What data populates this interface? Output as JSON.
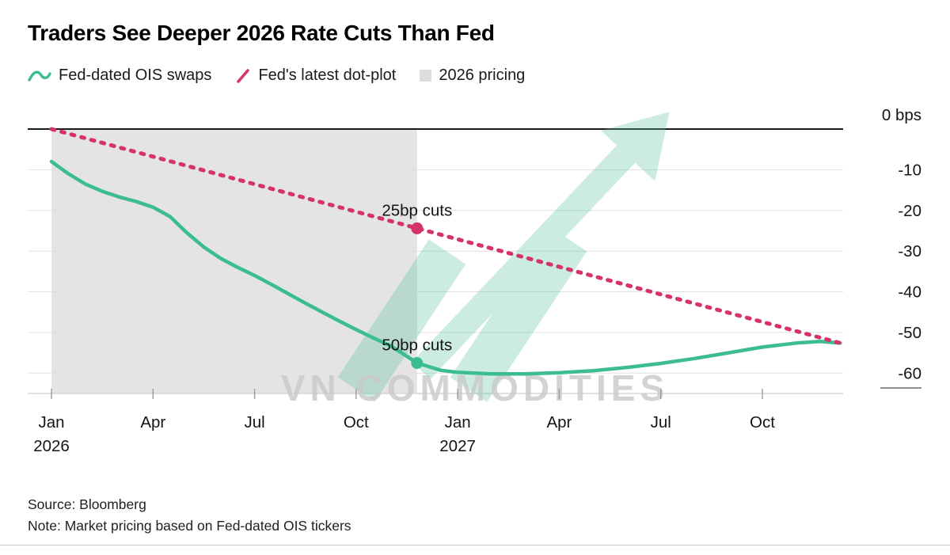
{
  "footer": {
    "source": "Source: Bloomberg",
    "note": "Note: Market pricing based on Fed-dated OIS tickers"
  },
  "watermark": {
    "text": "VN COMMODITIES",
    "icon": "trending-up-arrow-icon",
    "color": "#58c39e",
    "text_color": "#c9c9c9"
  },
  "colors": {
    "ois_green": "#3bbd90",
    "dot_plot_pink": "#d6326b",
    "region_gray": "#e4e4e4",
    "gridline": "#e0e0e0",
    "zero_line": "#1a1a1a"
  },
  "chart_data": {
    "type": "line",
    "title": "Traders See Deeper 2026 Rate Cuts Than Fed",
    "xlabel": "",
    "ylabel": "bps",
    "ylim": [
      -65,
      0
    ],
    "xlim": [
      0,
      23.3
    ],
    "x_unit": "months since Jan 2026",
    "grid": true,
    "legend_position": "top",
    "y_ticks": [
      {
        "value": 0,
        "label": "0 bps"
      },
      {
        "value": -10,
        "label": "-10"
      },
      {
        "value": -20,
        "label": "-20"
      },
      {
        "value": -30,
        "label": "-30"
      },
      {
        "value": -40,
        "label": "-40"
      },
      {
        "value": -50,
        "label": "-50"
      },
      {
        "value": -60,
        "label": "-60"
      }
    ],
    "x_ticks": [
      {
        "month": 0,
        "label": "Jan",
        "sublabel": "2026"
      },
      {
        "month": 3,
        "label": "Apr"
      },
      {
        "month": 6,
        "label": "Jul"
      },
      {
        "month": 9,
        "label": "Oct"
      },
      {
        "month": 12,
        "label": "Jan",
        "sublabel": "2027"
      },
      {
        "month": 15,
        "label": "Apr"
      },
      {
        "month": 18,
        "label": "Jul"
      },
      {
        "month": 21,
        "label": "Oct"
      }
    ],
    "series": [
      {
        "name": "Fed-dated OIS swaps",
        "data_name": "ois-swaps-line",
        "color": "#3bbd90",
        "style": "solid",
        "stroke_width": 4.5,
        "x": [
          0,
          0.5,
          1,
          1.5,
          2,
          2.5,
          3,
          3.5,
          4,
          4.5,
          5,
          5.5,
          6,
          6.5,
          7,
          7.5,
          8,
          8.5,
          9,
          9.5,
          10,
          10.4,
          10.8,
          11.5,
          12,
          13,
          14,
          15,
          16,
          17,
          18,
          19,
          20,
          21,
          22,
          22.7,
          23.3
        ],
        "values": [
          -8,
          -11,
          -13.5,
          -15.3,
          -16.7,
          -17.8,
          -19.2,
          -21.5,
          -25.5,
          -29,
          -31.8,
          -34,
          -36,
          -38.2,
          -40.5,
          -42.8,
          -45,
          -47.2,
          -49.3,
          -51.3,
          -53.2,
          -55.3,
          -57.5,
          -59.3,
          -59.8,
          -60.2,
          -60.2,
          -59.9,
          -59.4,
          -58.6,
          -57.6,
          -56.4,
          -55,
          -53.6,
          -52.6,
          -52.2,
          -52.6
        ]
      },
      {
        "name": "Fed's latest dot-plot",
        "data_name": "dot-plot-line",
        "color": "#d6326b",
        "style": "dashed",
        "stroke_width": 5,
        "x": [
          0,
          23.3
        ],
        "values": [
          0,
          -52.6
        ]
      }
    ],
    "region": {
      "name": "2026 pricing",
      "color": "#e4e4e4",
      "x_start": 0,
      "x_end": 10.8
    },
    "annotations": [
      {
        "id": "dot-plot-2026-cuts",
        "label": "25bp cuts",
        "x": 10.8,
        "y": -24.4,
        "color": "#d6326b"
      },
      {
        "id": "ois-2026-cuts",
        "label": "50bp cuts",
        "x": 10.8,
        "y": -57.5,
        "color": "#3bbd90"
      }
    ]
  }
}
